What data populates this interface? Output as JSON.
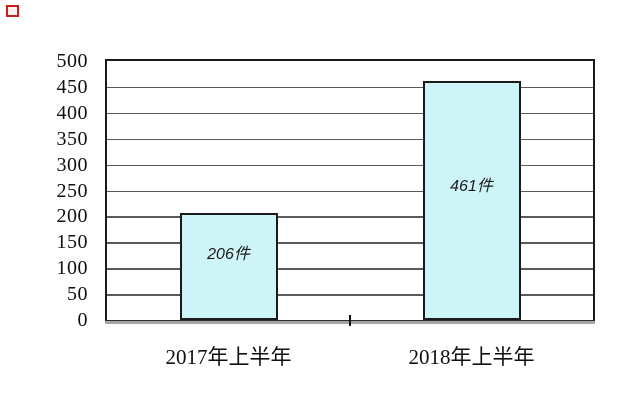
{
  "page": {
    "background": "#ffffff"
  },
  "decoration": {
    "red_mark_color": "#c81e1e"
  },
  "chart_data": {
    "type": "bar",
    "title": "",
    "xlabel": "",
    "ylabel": "",
    "categories": [
      "2017年上半年",
      "2018年上半年"
    ],
    "values": [
      206,
      461
    ],
    "bar_labels": [
      "206件",
      "461件"
    ],
    "yticks": [
      0,
      50,
      100,
      150,
      200,
      250,
      300,
      350,
      400,
      450,
      500
    ],
    "ylim": [
      0,
      500
    ],
    "grid": "horizontal",
    "legend": "none",
    "bar_label_style": "italic",
    "colors": {
      "bar_fill": "#cdf4f6",
      "bar_border": "#1b1b1b",
      "gridline": "#5a5a5a",
      "plot_border": "#1b1b1b",
      "axis_shadow": "#a6a6a6",
      "text": "#111111"
    }
  }
}
